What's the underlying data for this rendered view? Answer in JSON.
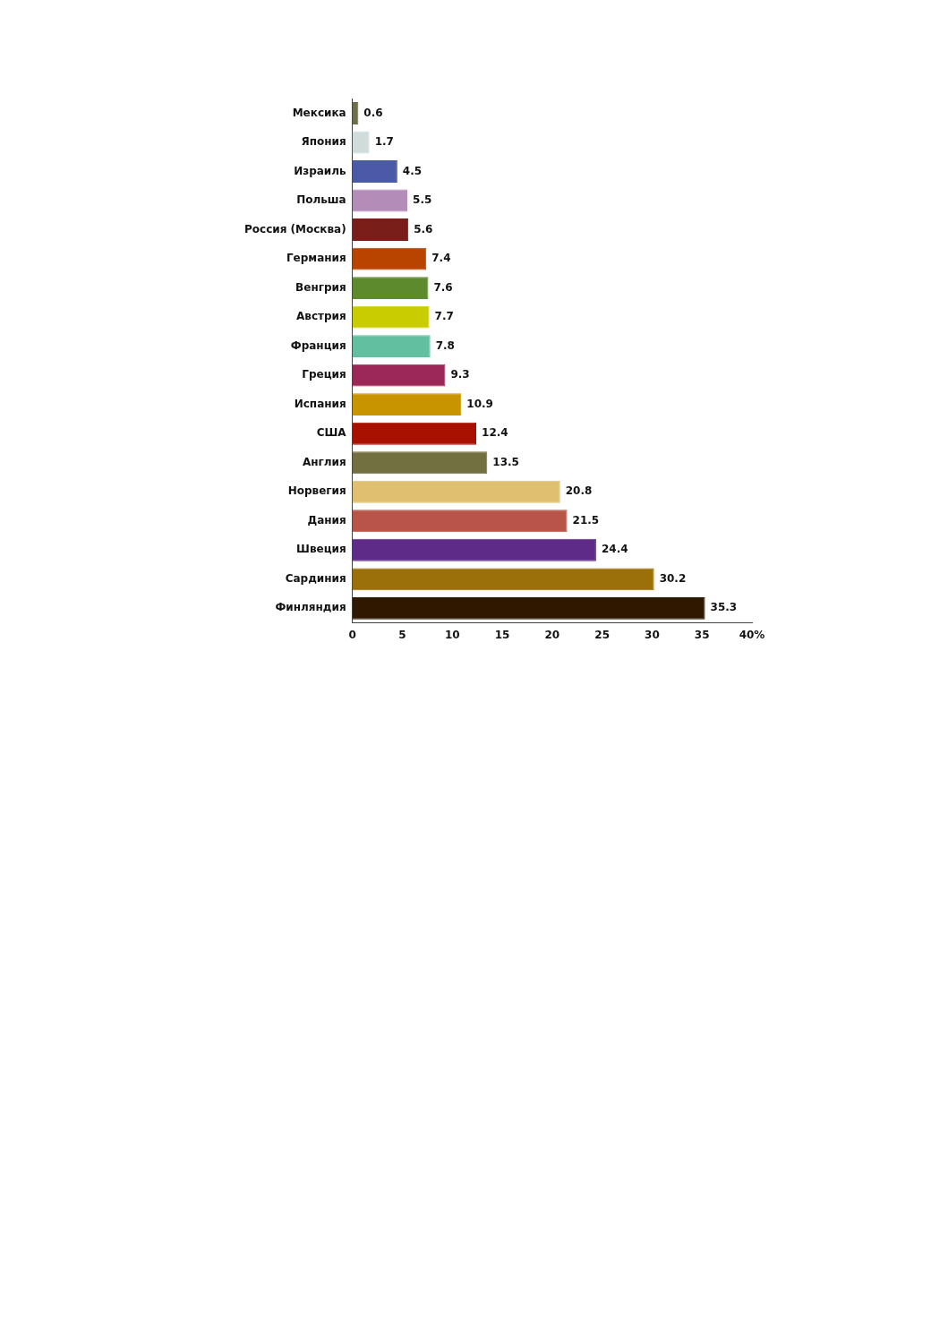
{
  "chart_data": {
    "type": "bar",
    "orientation": "horizontal",
    "categories": [
      "Мексика",
      "Япония",
      "Израиль",
      "Польша",
      "Россия (Москва)",
      "Германия",
      "Венгрия",
      "Австрия",
      "Франция",
      "Греция",
      "Испания",
      "США",
      "Англия",
      "Норвегия",
      "Дания",
      "Швеция",
      "Сардиния",
      "Финляндия"
    ],
    "values": [
      0.6,
      1.7,
      4.5,
      5.5,
      5.6,
      7.4,
      7.6,
      7.7,
      7.8,
      9.3,
      10.9,
      12.4,
      13.5,
      20.8,
      21.5,
      24.4,
      30.2,
      35.3
    ],
    "colors": [
      "#6e6e4a",
      "#d0dcdc",
      "#4a5aa8",
      "#b48cb8",
      "#7a1e1a",
      "#b84400",
      "#5c8a2c",
      "#c8cc00",
      "#62c0a0",
      "#9c2858",
      "#c89400",
      "#a81000",
      "#727040",
      "#e0c070",
      "#b85448",
      "#5e2c88",
      "#9c7008",
      "#2e1800"
    ],
    "xlim": [
      0,
      40
    ],
    "xticks": [
      0,
      5,
      10,
      15,
      20,
      25,
      30,
      35,
      {
        "value": 40,
        "label": "40%"
      }
    ],
    "grid": false,
    "data_labels": true
  }
}
